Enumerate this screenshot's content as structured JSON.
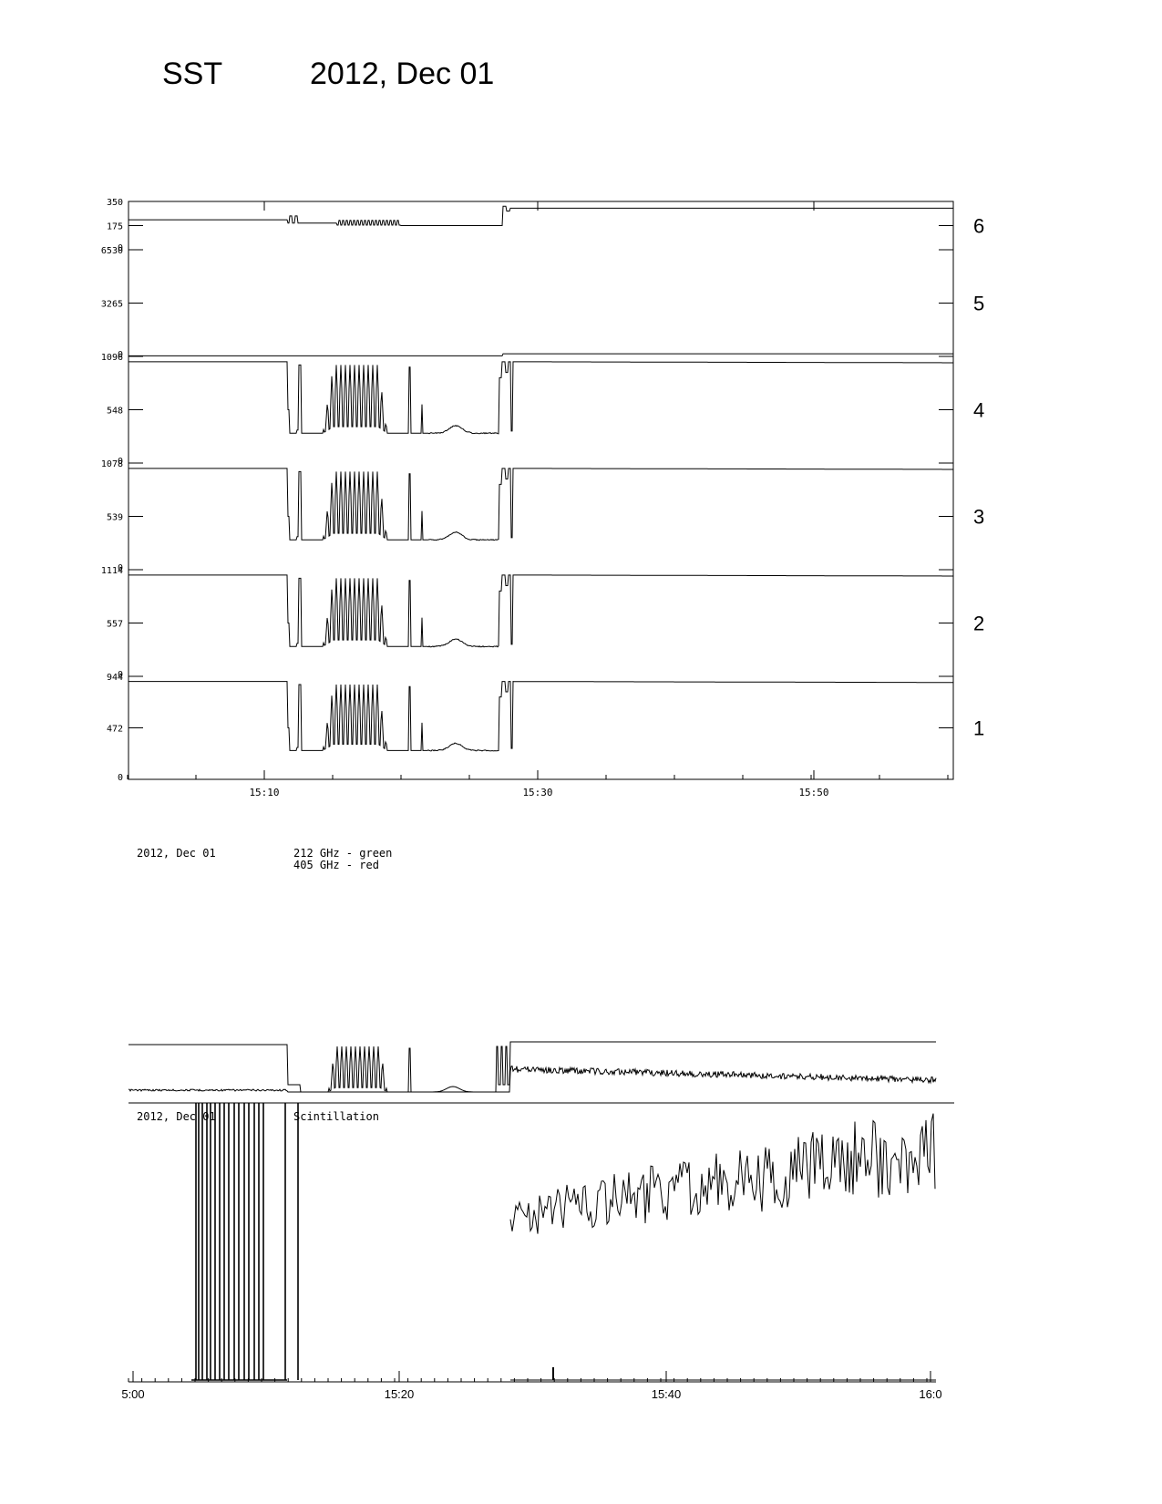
{
  "header": {
    "instrument": "SST",
    "date": "2012, Dec 01"
  },
  "chart_data": [
    {
      "type": "line",
      "x_ticks": [
        "15:10",
        "15:30",
        "15:50"
      ],
      "panels": [
        {
          "channel": "6",
          "y_ticks": [
            "0",
            "175",
            "350"
          ],
          "ylim": [
            0,
            350
          ]
        },
        {
          "channel": "5",
          "y_ticks": [
            "0",
            "3265",
            "6530"
          ],
          "ylim": [
            0,
            6530
          ]
        },
        {
          "channel": "4",
          "y_ticks": [
            "0",
            "548",
            "1096"
          ],
          "ylim": [
            0,
            1096
          ]
        },
        {
          "channel": "3",
          "y_ticks": [
            "0",
            "539",
            "1078"
          ],
          "ylim": [
            0,
            1078
          ]
        },
        {
          "channel": "2",
          "y_ticks": [
            "0",
            "557",
            "1114"
          ],
          "ylim": [
            0,
            1114
          ]
        },
        {
          "channel": "1",
          "y_ticks": [
            "0",
            "472",
            "944"
          ],
          "ylim": [
            0,
            944
          ]
        }
      ]
    },
    {
      "type": "line",
      "x_ticks": [
        "5:00",
        "15:20",
        "15:40",
        "16:0"
      ]
    }
  ],
  "captions": {
    "date": "2012, Dec 01",
    "legend_line1": "212 GHz - green",
    "legend_line2": "405 GHz - red",
    "scint_date": "2012, Dec 01",
    "scint_label": "Scintillation"
  }
}
